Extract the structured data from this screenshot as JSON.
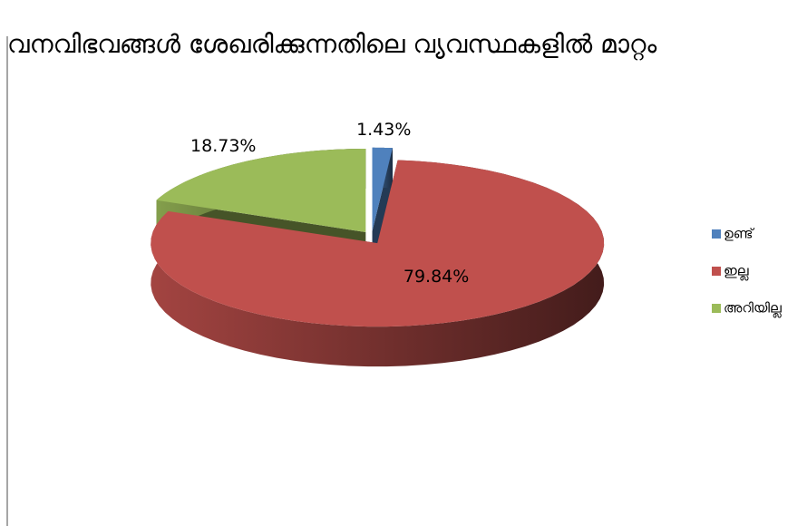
{
  "chart_data": {
    "type": "pie3d",
    "title": "വനവിഭവങ്ങൾ ശേഖരിക്കുന്നതിലെ വ്യവസ്ഥകളിൽ മാറ്റം",
    "categories": [
      "ഉണ്ട്",
      "ഇല്ല",
      "അറിയില്ല"
    ],
    "values": [
      1.43,
      79.84,
      18.73
    ],
    "value_labels": [
      "1.43%",
      "79.84%",
      "18.73%"
    ],
    "colors": [
      "#4f81bd",
      "#c0504d",
      "#9bbb59"
    ],
    "legend": "right"
  }
}
